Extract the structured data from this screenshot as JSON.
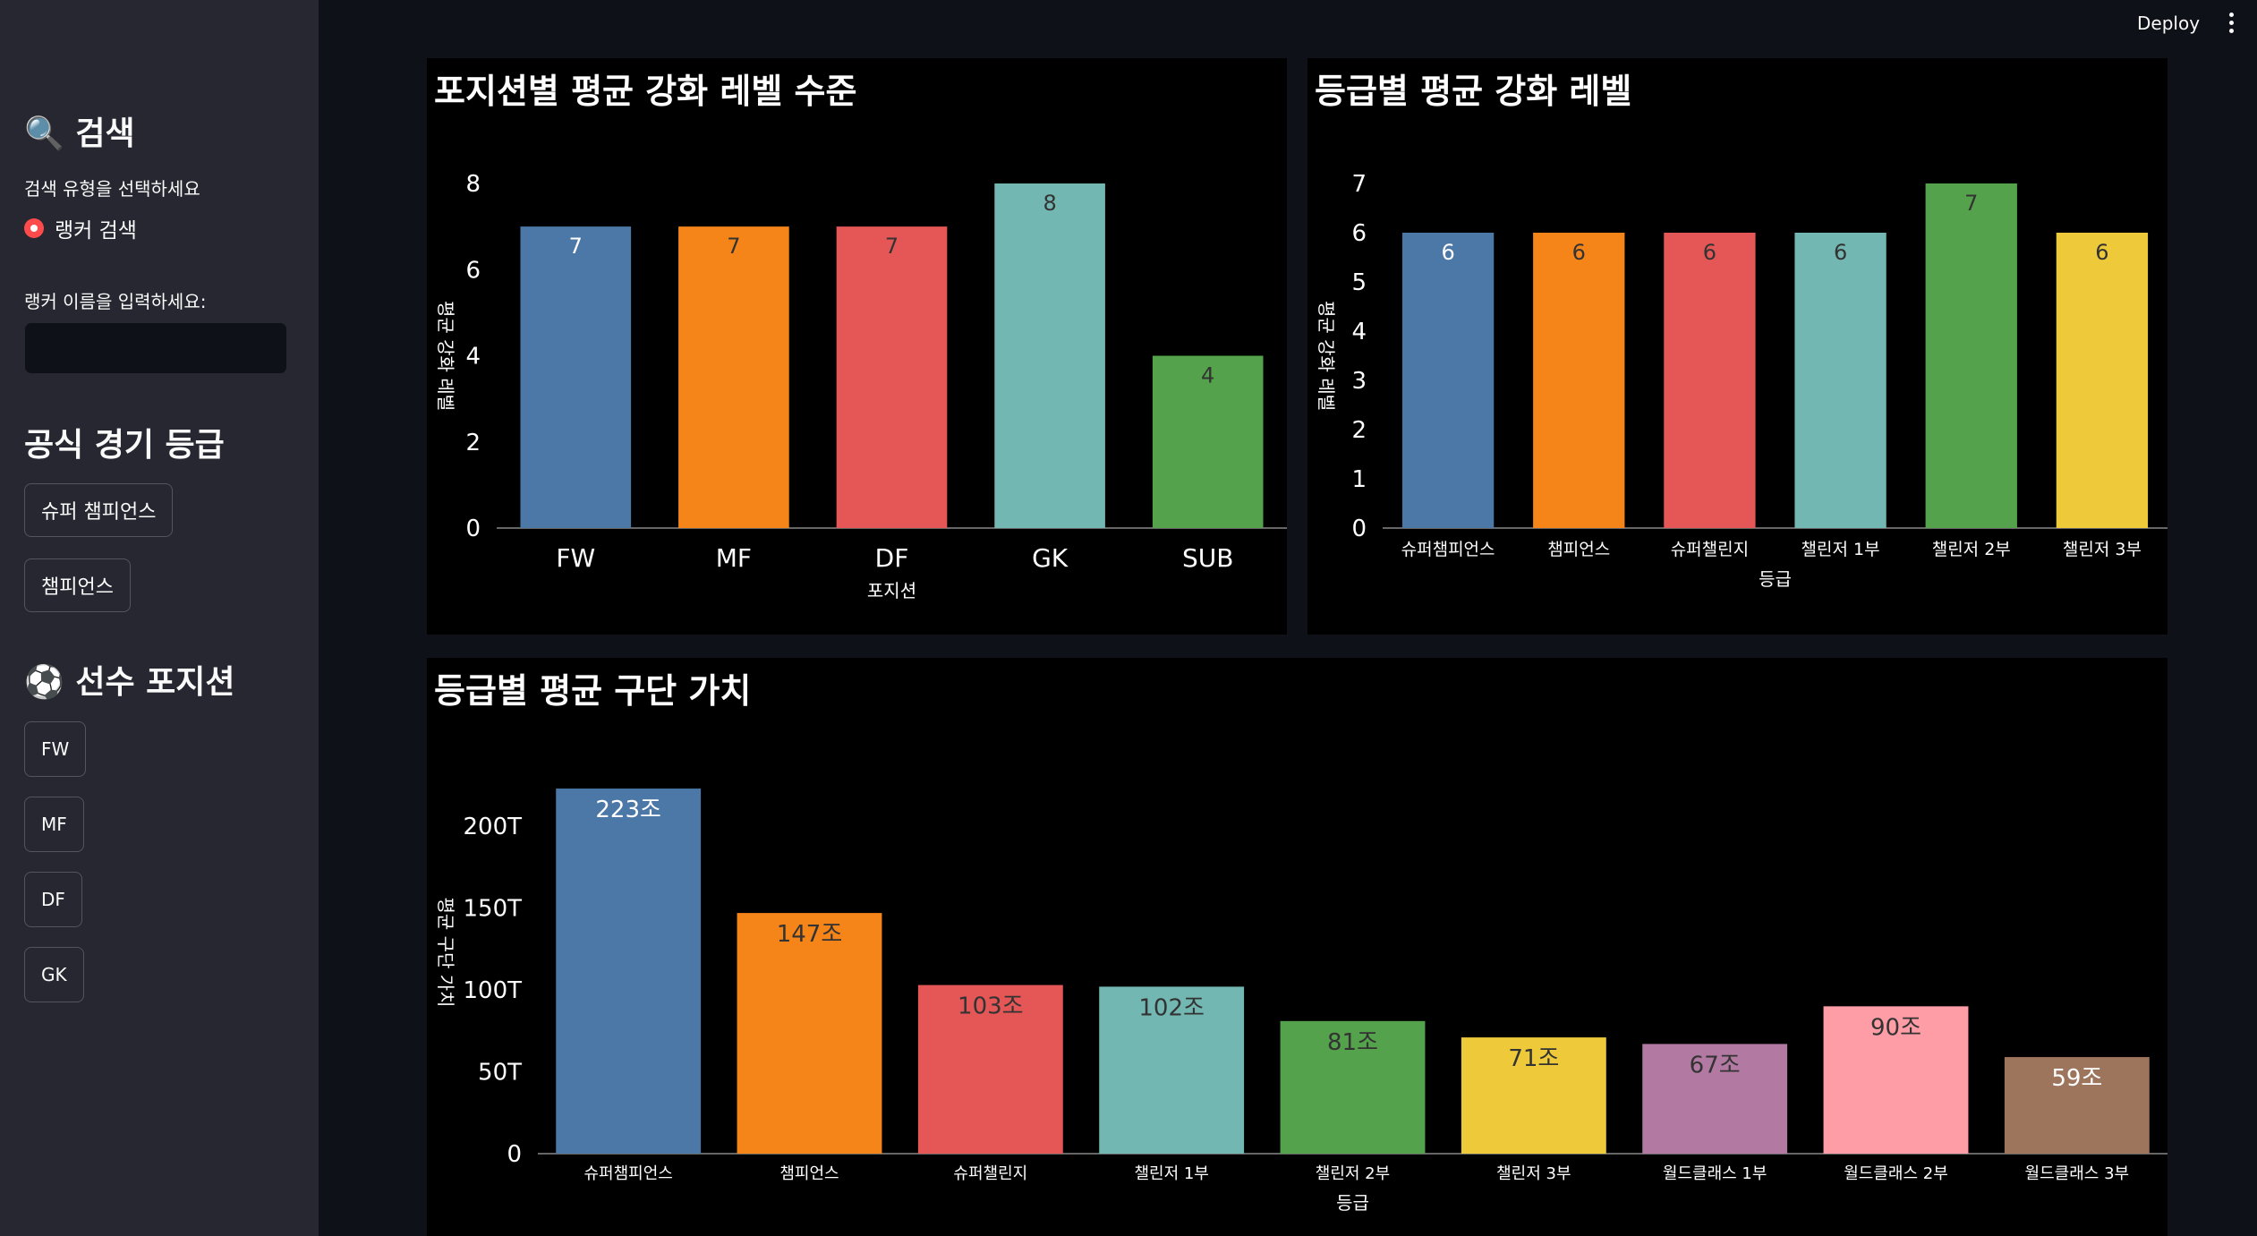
{
  "header": {
    "deploy_label": "Deploy"
  },
  "sidebar": {
    "search_title": "🔍 검색",
    "search_type_label": "검색 유형을 선택하세요",
    "radio_option": "랭커 검색",
    "ranker_name_label": "랭커 이름을 입력하세요:",
    "ranker_name_value": "",
    "grade_title": "공식 경기 등급",
    "grade_buttons": [
      "슈퍼 챔피언스",
      "챔피언스"
    ],
    "position_title": "⚽ 선수 포지션",
    "position_buttons": [
      "FW",
      "MF",
      "DF",
      "GK"
    ],
    "accent_color": "#ff4b4b"
  },
  "chart_data": [
    {
      "type": "bar",
      "title": "포지션별 평균 강화 레벨 수준",
      "categories": [
        "FW",
        "MF",
        "DF",
        "GK",
        "SUB"
      ],
      "values": [
        7,
        7,
        7,
        8,
        4
      ],
      "labels": [
        "7",
        "7",
        "7",
        "8",
        "4"
      ],
      "colors": [
        "#4c78a8",
        "#f58518",
        "#e45756",
        "#72b7b2",
        "#54a24b"
      ],
      "label_colors": [
        "#ffffff",
        "#333333",
        "#333333",
        "#333333",
        "#333333"
      ],
      "xlabel": "포지션",
      "ylabel": "평균 강화 레벨",
      "yticks": [
        "0",
        "2",
        "4",
        "6",
        "8"
      ],
      "ylim": [
        0,
        8
      ],
      "grid": false
    },
    {
      "type": "bar",
      "title": "등급별 평균 강화 레벨",
      "categories": [
        "슈퍼챔피언스",
        "챔피언스",
        "슈퍼챌린지",
        "챌린저 1부",
        "챌린저 2부",
        "챌린저 3부"
      ],
      "values": [
        6,
        6,
        6,
        6,
        7,
        6
      ],
      "labels": [
        "6",
        "6",
        "6",
        "6",
        "7",
        "6"
      ],
      "colors": [
        "#4c78a8",
        "#f58518",
        "#e45756",
        "#72b7b2",
        "#54a24b",
        "#eeca3b"
      ],
      "label_colors": [
        "#ffffff",
        "#333333",
        "#333333",
        "#333333",
        "#333333",
        "#333333"
      ],
      "xlabel": "등급",
      "ylabel": "평균 강화 레벨",
      "yticks": [
        "0",
        "1",
        "2",
        "3",
        "4",
        "5",
        "6",
        "7"
      ],
      "ylim": [
        0,
        7
      ],
      "grid": false
    },
    {
      "type": "bar",
      "title": "등급별 평균 구단 가치",
      "categories": [
        "슈퍼챔피언스",
        "챔피언스",
        "슈퍼챌린지",
        "챌린저 1부",
        "챌린저 2부",
        "챌린저 3부",
        "월드클래스 1부",
        "월드클래스 2부",
        "월드클래스 3부"
      ],
      "values": [
        223,
        147,
        103,
        102,
        81,
        71,
        67,
        90,
        59
      ],
      "labels": [
        "223조",
        "147조",
        "103조",
        "102조",
        "81조",
        "71조",
        "67조",
        "90조",
        "59조"
      ],
      "colors": [
        "#4c78a8",
        "#f58518",
        "#e45756",
        "#72b7b2",
        "#54a24b",
        "#eeca3b",
        "#b279a2",
        "#ff9da6",
        "#9d755d"
      ],
      "label_colors": [
        "#ffffff",
        "#333333",
        "#333333",
        "#333333",
        "#333333",
        "#333333",
        "#333333",
        "#333333",
        "#ffffff"
      ],
      "xlabel": "등급",
      "ylabel": "평균 구단 가치",
      "yticks": [
        "0",
        "50T",
        "100T",
        "150T",
        "200T"
      ],
      "ylim": [
        0,
        246
      ],
      "grid": false
    }
  ]
}
